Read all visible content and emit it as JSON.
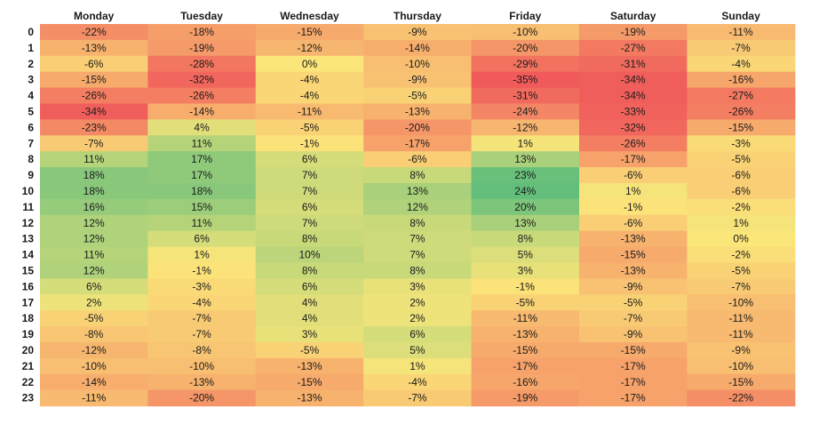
{
  "chart_data": {
    "type": "heatmap",
    "columns": [
      "Monday",
      "Tuesday",
      "Wednesday",
      "Thursday",
      "Friday",
      "Saturday",
      "Sunday"
    ],
    "rows": [
      "0",
      "1",
      "2",
      "3",
      "4",
      "5",
      "6",
      "7",
      "8",
      "9",
      "10",
      "11",
      "12",
      "13",
      "14",
      "15",
      "16",
      "17",
      "18",
      "19",
      "20",
      "21",
      "22",
      "23"
    ],
    "value_suffix": "%",
    "color_scale": {
      "min_color": "#f05a5a",
      "mid_color": "#fbe67a",
      "max_color": "#63be7b",
      "min": -35,
      "mid": 0,
      "max": 24
    },
    "values": [
      [
        -22,
        -18,
        -15,
        -9,
        -10,
        -19,
        -11
      ],
      [
        -13,
        -19,
        -12,
        -14,
        -20,
        -27,
        -7
      ],
      [
        -6,
        -28,
        0,
        -10,
        -29,
        -31,
        -4
      ],
      [
        -15,
        -32,
        -4,
        -9,
        -35,
        -34,
        -16
      ],
      [
        -26,
        -26,
        -4,
        -5,
        -31,
        -34,
        -27
      ],
      [
        -34,
        -14,
        -11,
        -13,
        -24,
        -33,
        -26
      ],
      [
        -23,
        4,
        -5,
        -20,
        -12,
        -32,
        -15
      ],
      [
        -7,
        11,
        -1,
        -17,
        1,
        -26,
        -3
      ],
      [
        11,
        17,
        6,
        -6,
        13,
        -17,
        -5
      ],
      [
        18,
        17,
        7,
        8,
        23,
        -6,
        -6
      ],
      [
        18,
        18,
        7,
        13,
        24,
        1,
        -6
      ],
      [
        16,
        15,
        6,
        12,
        20,
        -1,
        -2
      ],
      [
        12,
        11,
        7,
        8,
        13,
        -6,
        1
      ],
      [
        12,
        6,
        8,
        7,
        8,
        -13,
        0
      ],
      [
        11,
        1,
        10,
        7,
        5,
        -15,
        -2
      ],
      [
        12,
        -1,
        8,
        8,
        3,
        -13,
        -5
      ],
      [
        6,
        -3,
        6,
        3,
        -1,
        -9,
        -7
      ],
      [
        2,
        -4,
        4,
        2,
        -5,
        -5,
        -10
      ],
      [
        -5,
        -7,
        4,
        2,
        -11,
        -7,
        -11
      ],
      [
        -8,
        -7,
        3,
        6,
        -13,
        -9,
        -11
      ],
      [
        -12,
        -8,
        -5,
        5,
        -15,
        -15,
        -9
      ],
      [
        -10,
        -10,
        -13,
        1,
        -17,
        -17,
        -10
      ],
      [
        -14,
        -13,
        -15,
        -4,
        -16,
        -17,
        -15
      ],
      [
        -11,
        -20,
        -13,
        -7,
        -19,
        -17,
        -22
      ]
    ]
  }
}
